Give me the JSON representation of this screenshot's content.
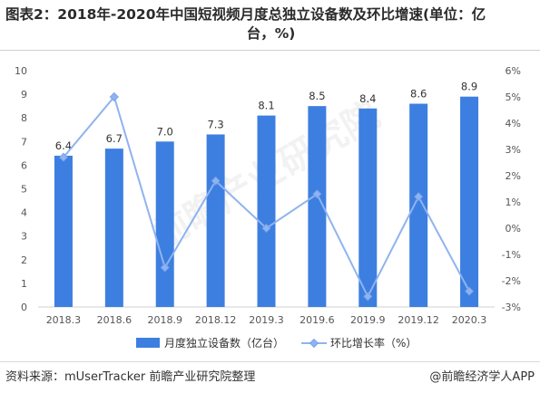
{
  "title": {
    "line1": "图表2：2018年-2020年中国短视频月度总独立设备数及环比增速(单位：亿",
    "line2": "台，%)"
  },
  "watermark": "前瞻产业研究院",
  "footer": {
    "source": "资料来源：mUserTracker 前瞻产业研究院整理",
    "brand": "@前瞻经济学人APP"
  },
  "colors": {
    "bar": "#3d7fe0",
    "line": "#8fb3f0",
    "marker": "#8fb3f0"
  },
  "chart_data": {
    "type": "bar",
    "categories": [
      "2018.3",
      "2018.6",
      "2018.9",
      "2018.12",
      "2019.3",
      "2019.6",
      "2019.9",
      "2019.12",
      "2020.3"
    ],
    "series": [
      {
        "name": "月度独立设备数（亿台）",
        "type": "bar",
        "axis": "left",
        "values": [
          6.4,
          6.7,
          7.0,
          7.3,
          8.1,
          8.5,
          8.4,
          8.6,
          8.9
        ],
        "labels": [
          "6.4",
          "6.7",
          "7.0",
          "7.3",
          "8.1",
          "8.5",
          "8.4",
          "8.6",
          "8.9"
        ]
      },
      {
        "name": "环比增长率（%）",
        "type": "line",
        "axis": "right",
        "values": [
          2.7,
          5.0,
          -1.5,
          1.8,
          0.0,
          1.3,
          -2.6,
          1.2,
          -2.4
        ]
      }
    ],
    "ylim_left": [
      0,
      10
    ],
    "yticks_left": [
      "0",
      "1",
      "2",
      "3",
      "4",
      "5",
      "6",
      "7",
      "8",
      "9",
      "10"
    ],
    "ylim_right": [
      -3,
      6
    ],
    "yticks_right": [
      "-3%",
      "-2%",
      "-1%",
      "0%",
      "1%",
      "2%",
      "3%",
      "4%",
      "5%",
      "6%"
    ],
    "grid": false,
    "legend_position": "bottom"
  }
}
